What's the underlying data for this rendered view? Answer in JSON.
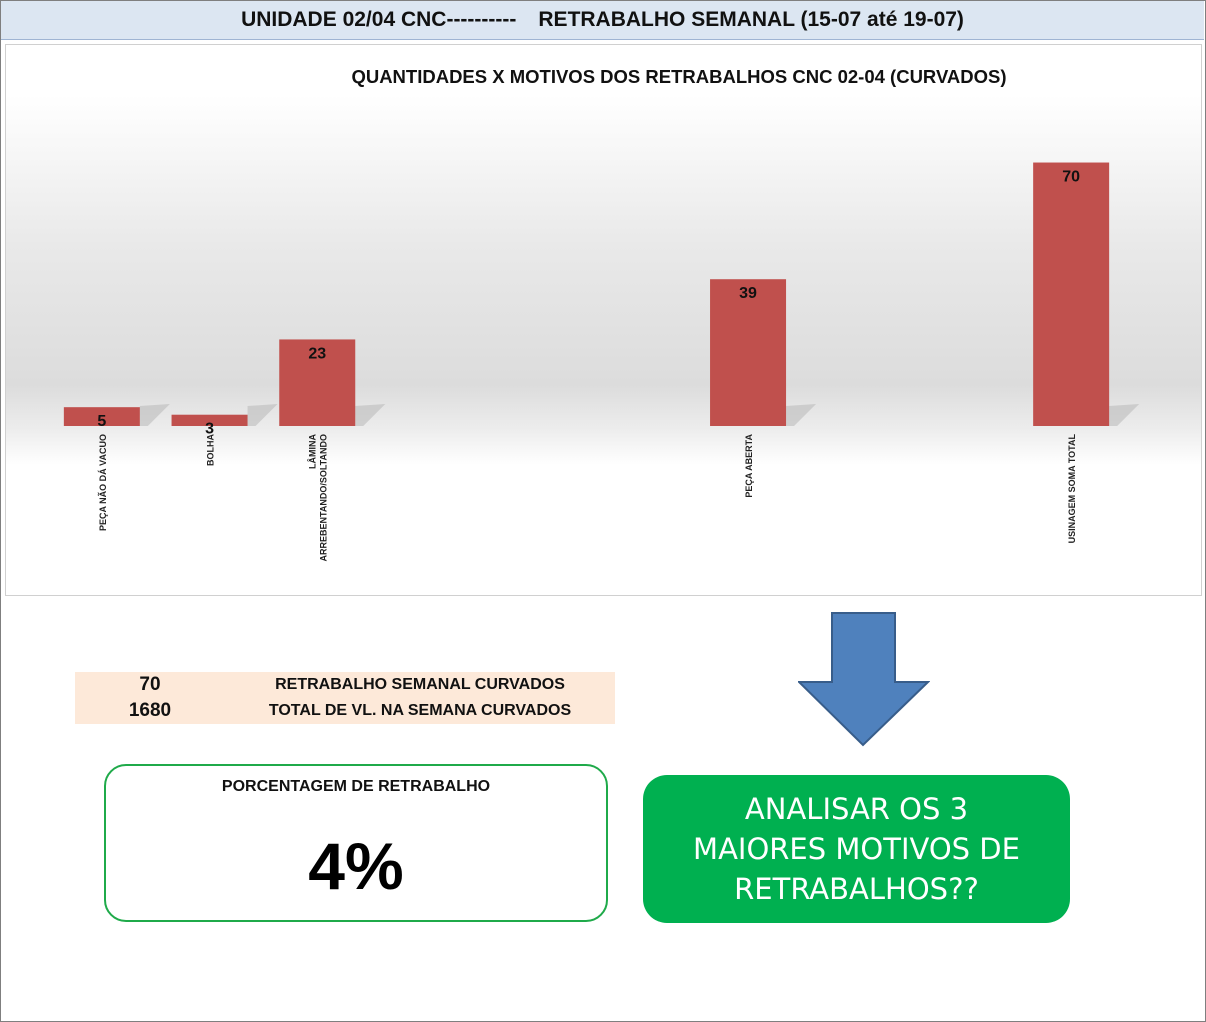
{
  "header": {
    "left_title": "UNIDADE 02/04 CNC----------",
    "right_title": "RETRABALHO SEMANAL (15-07 até 19-07)"
  },
  "chart_data": {
    "type": "bar",
    "title": "QUANTIDADES X MOTIVOS DOS RETRABALHOS CNC 02-04 (CURVADOS)",
    "categories": [
      "PEÇA NÃO DÁ VACUO",
      "BOLHA",
      "LÂMINA ARREBENTANDO/SOLTANDO",
      "",
      "",
      "",
      "PEÇA ABERTA",
      "",
      "",
      "USINAGEM SOMA TOTAL"
    ],
    "values": [
      5,
      3,
      23,
      null,
      null,
      null,
      39,
      null,
      null,
      70
    ],
    "data_labels": true,
    "bar_color": "#c0504d",
    "ylim": [
      0,
      72
    ],
    "xlabel": "",
    "ylabel": "",
    "grid": false,
    "legend": "none"
  },
  "summary": {
    "rows": [
      {
        "value": "70",
        "label": "RETRABALHO SEMANAL CURVADOS"
      },
      {
        "value": "1680",
        "label": "TOTAL DE VL. NA SEMANA CURVADOS"
      }
    ]
  },
  "percentage": {
    "title": "PORCENTAGEM DE RETRABALHO",
    "value": "4%"
  },
  "action": {
    "text": "ANALISAR OS 3 MAIORES MOTIVOS DE RETRABALHOS??",
    "color": "#00b050",
    "icon": "down-arrow-icon"
  }
}
